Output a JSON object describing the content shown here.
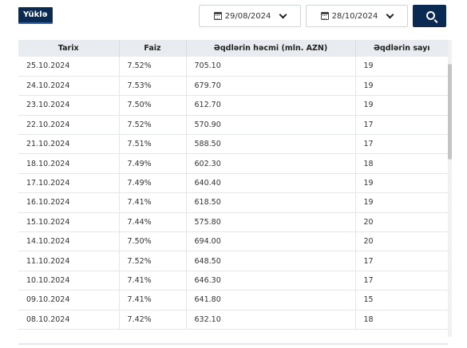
{
  "toolbar": {
    "load_label": "Yüklə",
    "date_from": "29/08/2024",
    "date_to": "28/10/2024"
  },
  "table": {
    "headers": [
      "Tarix",
      "Faiz",
      "Əqdlərin həcmi (mln. AZN)",
      "Əqdlərin sayı"
    ],
    "rows": [
      [
        "25.10.2024",
        "7.52%",
        "705.10",
        "19"
      ],
      [
        "24.10.2024",
        "7.53%",
        "679.70",
        "19"
      ],
      [
        "23.10.2024",
        "7.50%",
        "612.70",
        "19"
      ],
      [
        "22.10.2024",
        "7.52%",
        "570.90",
        "17"
      ],
      [
        "21.10.2024",
        "7.51%",
        "588.50",
        "17"
      ],
      [
        "18.10.2024",
        "7.49%",
        "602.30",
        "18"
      ],
      [
        "17.10.2024",
        "7.49%",
        "640.40",
        "19"
      ],
      [
        "16.10.2024",
        "7.41%",
        "618.50",
        "19"
      ],
      [
        "15.10.2024",
        "7.44%",
        "575.80",
        "20"
      ],
      [
        "14.10.2024",
        "7.50%",
        "694.00",
        "20"
      ],
      [
        "11.10.2024",
        "7.52%",
        "648.50",
        "17"
      ],
      [
        "10.10.2024",
        "7.41%",
        "646.30",
        "17"
      ],
      [
        "09.10.2024",
        "7.41%",
        "641.80",
        "15"
      ],
      [
        "08.10.2024",
        "7.42%",
        "632.10",
        "18"
      ]
    ]
  },
  "icons": {
    "calendar": "calendar-icon",
    "chevron": "chevron-down-icon",
    "search": "search-icon"
  },
  "colors": {
    "accent": "#0b2a52",
    "header_bg": "#e8ebef"
  }
}
